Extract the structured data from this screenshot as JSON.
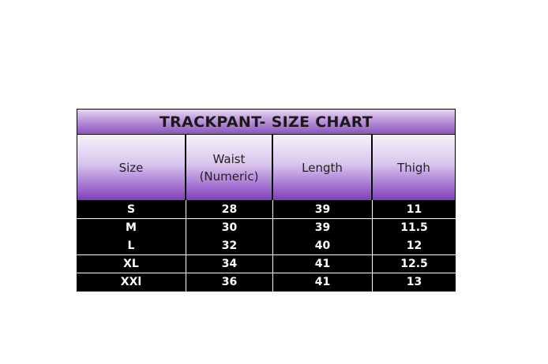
{
  "title": "TRACKPANT- SIZE CHART",
  "headers": [
    "Size",
    "Waist\n(Numeric)",
    "Length",
    "Thigh"
  ],
  "header_lines": {
    "waist_1": "Waist",
    "waist_2": "(Numeric)"
  },
  "rows": [
    [
      "S",
      "28",
      "39",
      "11"
    ],
    [
      "M",
      "30",
      "39",
      "11.5"
    ],
    [
      "L",
      "32",
      "40",
      "12"
    ],
    [
      "XL",
      "34",
      "41",
      "12.5"
    ],
    [
      "XXl",
      "36",
      "41",
      "13"
    ]
  ],
  "colors": {
    "header_purple": "#7c3fb5",
    "row_bg": "#000000",
    "row_text": "#ffffff"
  }
}
